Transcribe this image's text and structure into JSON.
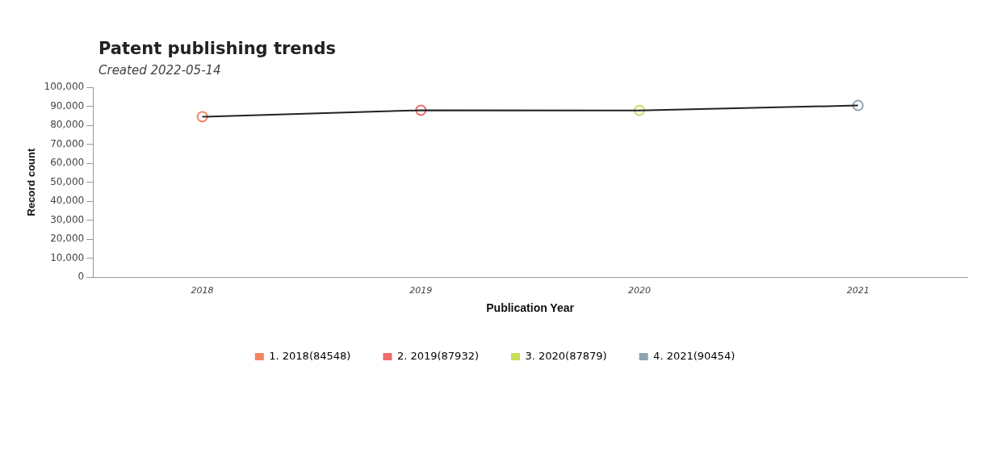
{
  "chart_data": {
    "type": "line",
    "title": "Patent publishing trends",
    "subtitle": "Created 2022-05-14",
    "xlabel": "Publication Year",
    "ylabel": "Record count",
    "categories": [
      "2018",
      "2019",
      "2020",
      "2021"
    ],
    "series": [
      {
        "color": "#222222",
        "values": [
          84548,
          87932,
          87879,
          90454
        ],
        "marker": "none"
      },
      {
        "type": "scatter",
        "name": "1. 2018(84548)",
        "color": "#f4845f",
        "values": [
          84548,
          null,
          null,
          null
        ]
      },
      {
        "type": "scatter",
        "name": "2. 2019(87932)",
        "color": "#ee6c6c",
        "values": [
          null,
          87932,
          null,
          null
        ]
      },
      {
        "type": "scatter",
        "name": "3. 2020(87879)",
        "color": "#c9dc5a",
        "values": [
          null,
          null,
          87879,
          null
        ]
      },
      {
        "type": "scatter",
        "name": "4. 2021(90454)",
        "color": "#8fa3b0",
        "values": [
          null,
          null,
          null,
          90454
        ]
      }
    ],
    "ylim": [
      0,
      100000
    ],
    "yticks": [
      {
        "value": 0,
        "label": "0"
      },
      {
        "value": 10000,
        "label": "10,000"
      },
      {
        "value": 20000,
        "label": "20,000"
      },
      {
        "value": 30000,
        "label": "30,000"
      },
      {
        "value": 40000,
        "label": "40,000"
      },
      {
        "value": 50000,
        "label": "50,000"
      },
      {
        "value": 60000,
        "label": "60,000"
      },
      {
        "value": 70000,
        "label": "70,000"
      },
      {
        "value": 80000,
        "label": "80,000"
      },
      {
        "value": 90000,
        "label": "90,000"
      },
      {
        "value": 100000,
        "label": "100,000"
      }
    ],
    "grid": false,
    "legend": "bottom",
    "marker": "circle",
    "line_style": "solid"
  }
}
